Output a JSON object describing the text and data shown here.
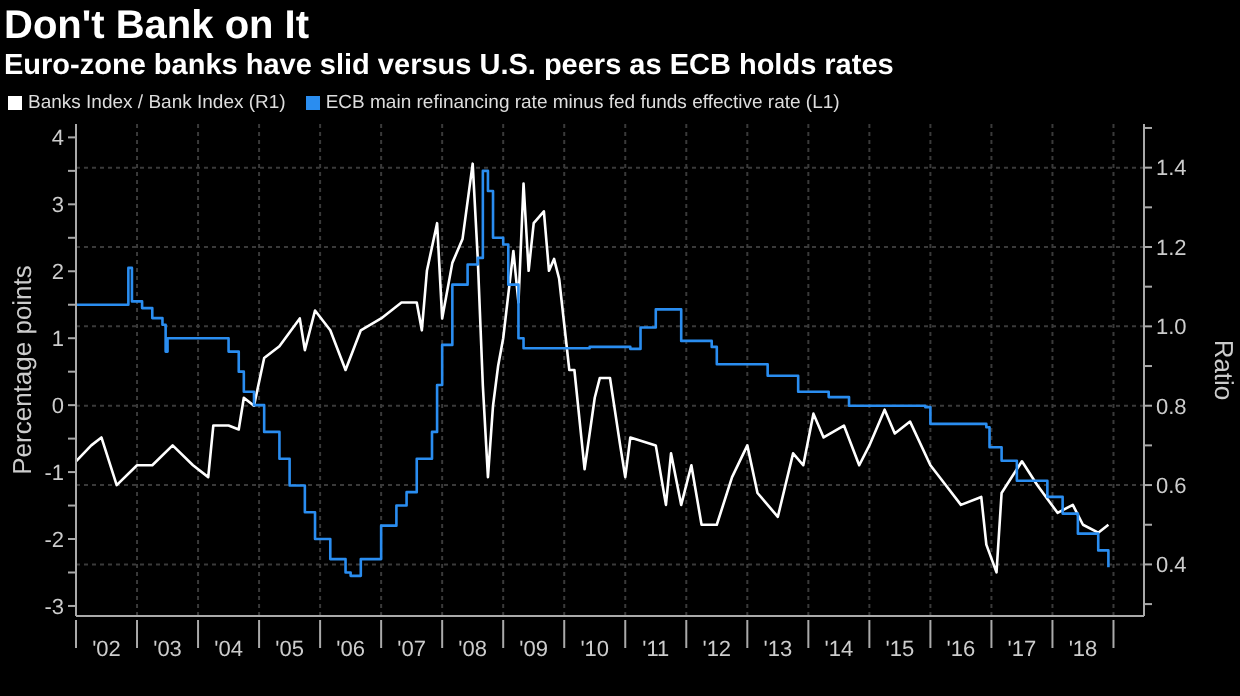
{
  "chart_data": {
    "type": "line",
    "title": "Don't Bank on It",
    "subtitle": "Euro-zone banks have slid versus U.S. peers as ECB holds rates",
    "ylabel": "Percentage points",
    "y2label": "Ratio",
    "legend": "top left",
    "grid": true,
    "marker": "none",
    "line_style": "solid",
    "xlim": [
      "2002",
      "2019-07"
    ],
    "xticks": [
      {
        "value": "2002",
        "label": null
      },
      {
        "value": "2002-07",
        "label": "'02"
      },
      {
        "value": "2003",
        "label": null
      },
      {
        "value": "2003-07",
        "label": "'03"
      },
      {
        "value": "2004",
        "label": null
      },
      {
        "value": "2004-07",
        "label": "'04"
      },
      {
        "value": "2005",
        "label": null
      },
      {
        "value": "2005-07",
        "label": "'05"
      },
      {
        "value": "2006",
        "label": null
      },
      {
        "value": "2006-07",
        "label": "'06"
      },
      {
        "value": "2007",
        "label": null
      },
      {
        "value": "2007-07",
        "label": "'07"
      },
      {
        "value": "2008",
        "label": null
      },
      {
        "value": "2008-07",
        "label": "'08"
      },
      {
        "value": "2009",
        "label": null
      },
      {
        "value": "2009-07",
        "label": "'09"
      },
      {
        "value": "2010",
        "label": null
      },
      {
        "value": "2010-07",
        "label": "'10"
      },
      {
        "value": "2011",
        "label": null
      },
      {
        "value": "2011-07",
        "label": "'11"
      },
      {
        "value": "2012",
        "label": null
      },
      {
        "value": "2012-07",
        "label": "'12"
      },
      {
        "value": "2013",
        "label": null
      },
      {
        "value": "2013-07",
        "label": "'13"
      },
      {
        "value": "2014",
        "label": null
      },
      {
        "value": "2014-07",
        "label": "'14"
      },
      {
        "value": "2015",
        "label": null
      },
      {
        "value": "2015-07",
        "label": "'15"
      },
      {
        "value": "2016",
        "label": null
      },
      {
        "value": "2016-07",
        "label": "'16"
      },
      {
        "value": "2017",
        "label": null
      },
      {
        "value": "2017-07",
        "label": "'17"
      },
      {
        "value": "2018",
        "label": null
      },
      {
        "value": "2018-07",
        "label": "'18"
      },
      {
        "value": "2019",
        "label": null
      }
    ],
    "ylim": [
      -3.15,
      4.2
    ],
    "yticks": [
      -3,
      {
        "value": -2.5,
        "label": null
      },
      -2,
      {
        "value": -1.5,
        "label": null
      },
      -1,
      {
        "value": -0.5,
        "label": null
      },
      0,
      {
        "value": 0.5,
        "label": null
      },
      1,
      {
        "value": 1.5,
        "label": null
      },
      2,
      {
        "value": 2.5,
        "label": null
      },
      3,
      {
        "value": 3.5,
        "label": null
      },
      4
    ],
    "y2lim": [
      0.27,
      1.51
    ],
    "y2ticks": [
      {
        "value": 0.3,
        "label": null
      },
      0.4,
      {
        "value": 0.5,
        "label": null
      },
      0.6,
      {
        "value": 0.7,
        "label": null
      },
      0.8,
      {
        "value": 0.9,
        "label": null
      },
      {
        "value": 1,
        "label": "1.0"
      },
      {
        "value": 1.1,
        "label": null
      },
      1.2,
      {
        "value": 1.3,
        "label": null
      },
      1.4,
      {
        "value": 1.5,
        "label": null
      }
    ],
    "series": [
      {
        "name": "Banks Index / Bank Index (R1)",
        "type": "line",
        "axis": "y2",
        "color": "#ffffff",
        "x": [
          "2002-01",
          "2002-04",
          "2002-06",
          "2002-09",
          "2003-01",
          "2003-04",
          "2003-08",
          "2003-12",
          "2004-03",
          "2004-04",
          "2004-07",
          "2004-09",
          "2004-10",
          "2004-12",
          "2005-02",
          "2005-05",
          "2005-09",
          "2005-10",
          "2005-12",
          "2006-03",
          "2006-06",
          "2006-09",
          "2007-01",
          "2007-05",
          "2007-08",
          "2007-09",
          "2007-10",
          "2007-12",
          "2008-01",
          "2008-03",
          "2008-05",
          "2008-07",
          "2008-08",
          "2008-09",
          "2008-10",
          "2008-11",
          "2008-12",
          "2009-01",
          "2009-03",
          "2009-04",
          "2009-05",
          "2009-06",
          "2009-07",
          "2009-09",
          "2009-10",
          "2009-11",
          "2009-12",
          "2010-02",
          "2010-03",
          "2010-05",
          "2010-07",
          "2010-08",
          "2010-10",
          "2010-12",
          "2011-01",
          "2011-02",
          "2011-07",
          "2011-09",
          "2011-10",
          "2011-12",
          "2012-02",
          "2012-04",
          "2012-07",
          "2012-10",
          "2013-01",
          "2013-03",
          "2013-07",
          "2013-10",
          "2013-12",
          "2014-02",
          "2014-04",
          "2014-08",
          "2014-11",
          "2015-01",
          "2015-04",
          "2015-06",
          "2015-09",
          "2016-01",
          "2016-04",
          "2016-07",
          "2016-11",
          "2016-12",
          "2017-02",
          "2017-03",
          "2017-04",
          "2017-07",
          "2017-10",
          "2018-02",
          "2018-05",
          "2018-07",
          "2018-10",
          "2018-12"
        ],
        "values": [
          0.66,
          0.7,
          0.72,
          0.6,
          0.65,
          0.65,
          0.7,
          0.65,
          0.62,
          0.75,
          0.75,
          0.74,
          0.82,
          0.8,
          0.92,
          0.95,
          1.02,
          0.94,
          1.04,
          0.99,
          0.89,
          0.99,
          1.02,
          1.06,
          1.06,
          0.99,
          1.14,
          1.26,
          1.02,
          1.16,
          1.22,
          1.41,
          1.17,
          0.85,
          0.62,
          0.8,
          0.9,
          0.97,
          1.19,
          1.06,
          1.36,
          1.14,
          1.26,
          1.29,
          1.14,
          1.17,
          1.12,
          0.89,
          0.89,
          0.64,
          0.82,
          0.87,
          0.87,
          0.7,
          0.62,
          0.72,
          0.7,
          0.55,
          0.68,
          0.55,
          0.65,
          0.5,
          0.5,
          0.62,
          0.7,
          0.58,
          0.52,
          0.68,
          0.65,
          0.78,
          0.72,
          0.75,
          0.65,
          0.7,
          0.79,
          0.73,
          0.76,
          0.65,
          0.6,
          0.55,
          0.57,
          0.45,
          0.38,
          0.58,
          0.6,
          0.66,
          0.6,
          0.53,
          0.55,
          0.5,
          0.48,
          0.5
        ]
      },
      {
        "name": "ECB main refinancing rate minus fed funds effective rate (L1)",
        "type": "step",
        "axis": "y",
        "color": "#2a8df0",
        "x": [
          "2002-01",
          "2002-11-01",
          "2002-11-10",
          "2002-12",
          "2003-02",
          "2003-04",
          "2003-06-01",
          "2003-06-20",
          "2003-07",
          "2004-06",
          "2004-07",
          "2004-09",
          "2004-10",
          "2004-12",
          "2005-02",
          "2005-05",
          "2005-07",
          "2005-10",
          "2005-12",
          "2006-03",
          "2006-06",
          "2006-07",
          "2006-09",
          "2007-01",
          "2007-04",
          "2007-06",
          "2007-08",
          "2007-11",
          "2007-12",
          "2008-01",
          "2008-03",
          "2008-06",
          "2008-08",
          "2008-09",
          "2008-10",
          "2008-11",
          "2009-01",
          "2009-02",
          "2009-04",
          "2009-05",
          "2010-01",
          "2010-06",
          "2011-02",
          "2011-04",
          "2011-07",
          "2011-11",
          "2011-12",
          "2012-06",
          "2012-07",
          "2013-04",
          "2013-05",
          "2013-10",
          "2013-11",
          "2014-05",
          "2014-09",
          "2015-12",
          "2016-01",
          "2016-12-01",
          "2016-12-20",
          "2017-03",
          "2017-06",
          "2017-12",
          "2018-03",
          "2018-06",
          "2018-10",
          "2018-12"
        ],
        "values": [
          1.5,
          1.5,
          2.05,
          1.55,
          1.45,
          1.3,
          1.2,
          0.8,
          1.0,
          1.0,
          0.8,
          0.5,
          0.2,
          0.0,
          -0.4,
          -0.8,
          -1.2,
          -1.6,
          -2.0,
          -2.3,
          -2.5,
          -2.55,
          -2.3,
          -1.8,
          -1.5,
          -1.3,
          -0.8,
          -0.4,
          0.3,
          0.9,
          1.8,
          2.1,
          2.2,
          3.5,
          3.2,
          2.5,
          2.4,
          1.8,
          1.0,
          0.85,
          0.85,
          0.87,
          0.84,
          1.16,
          1.43,
          1.43,
          0.96,
          0.87,
          0.61,
          0.61,
          0.44,
          0.44,
          0.2,
          0.12,
          -0.01,
          -0.03,
          -0.28,
          -0.33,
          -0.63,
          -0.83,
          -1.13,
          -1.37,
          -1.62,
          -1.92,
          -2.17,
          -2.42
        ]
      }
    ]
  }
}
